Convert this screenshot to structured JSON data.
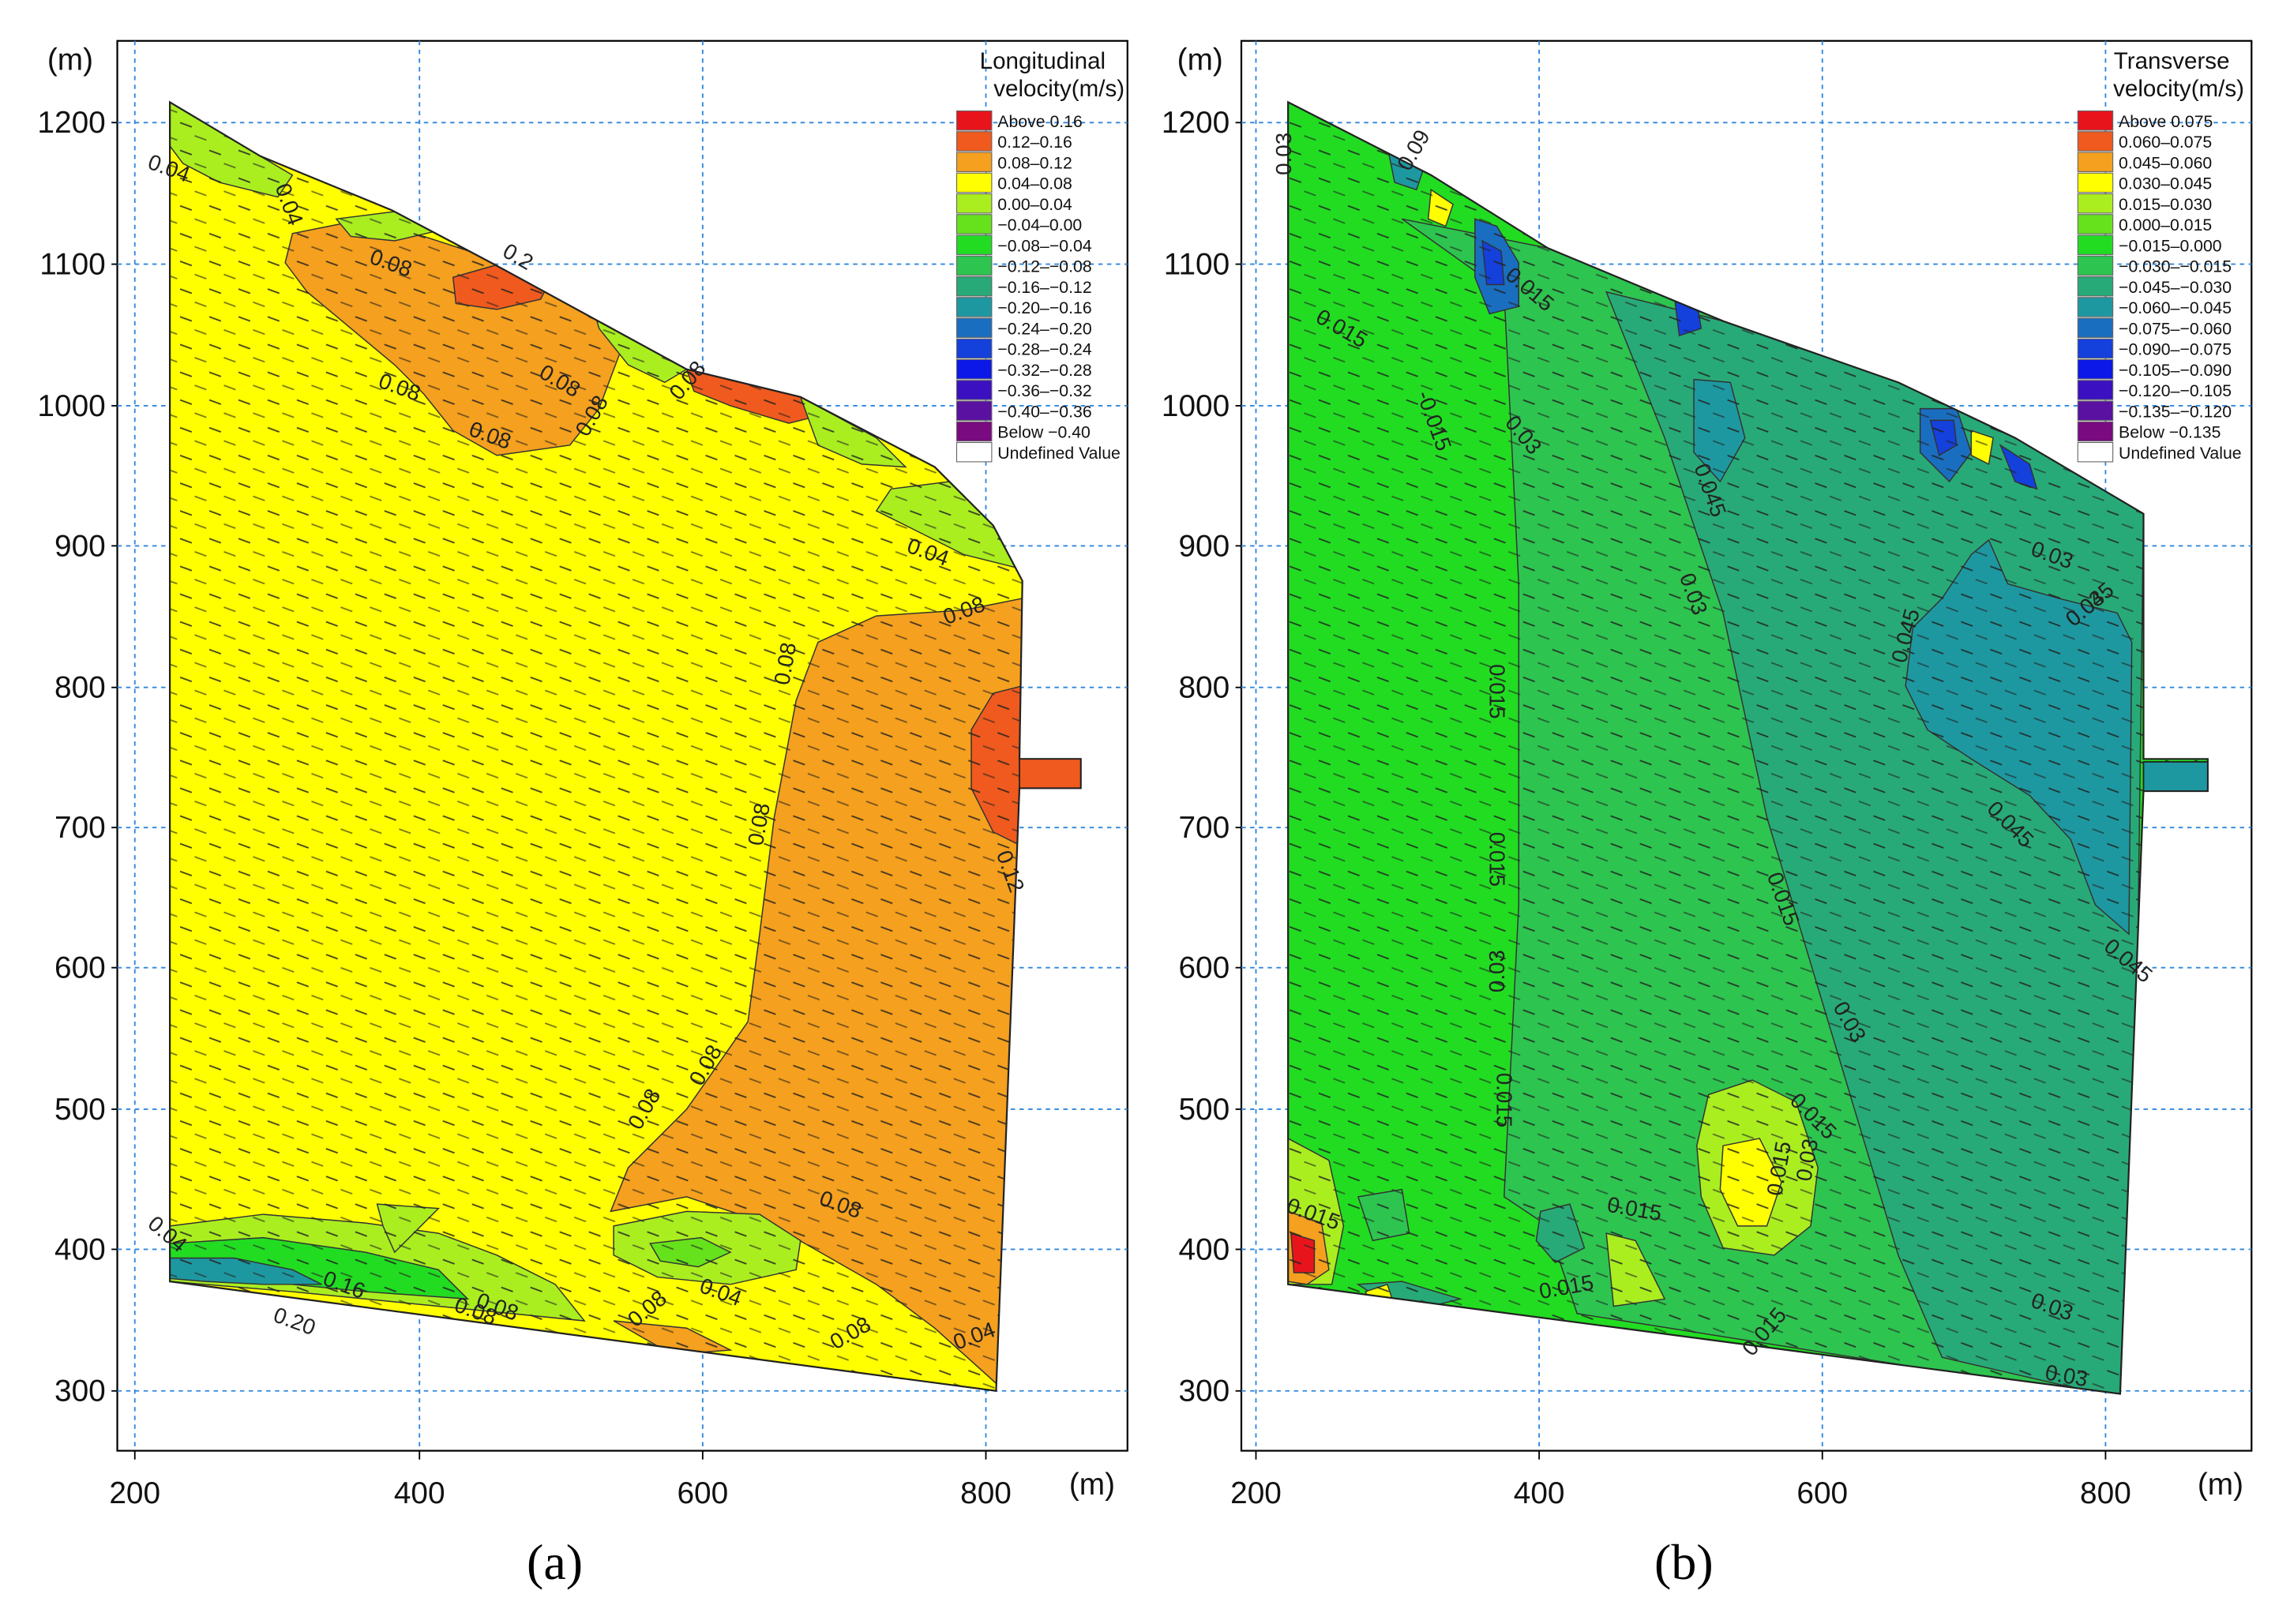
{
  "panels": [
    {
      "id": "a",
      "caption": "(a)",
      "axis_units": {
        "y": "(m)",
        "x": "(m)"
      },
      "x_ticks": [
        "200",
        "400",
        "600",
        "800"
      ],
      "y_ticks": [
        "1200",
        "1100",
        "1000",
        "900",
        "800",
        "700",
        "600",
        "500",
        "400",
        "300"
      ],
      "legend": {
        "title_line1": "Longitudinal",
        "title_line2": "velocity(m/s)",
        "items": [
          {
            "label": "Above 0.16",
            "color": "#e8141c"
          },
          {
            "label": "0.12–0.16",
            "color": "#f05a1e"
          },
          {
            "label": "0.08–0.12",
            "color": "#f5a01e"
          },
          {
            "label": "0.04–0.08",
            "color": "#ffff00"
          },
          {
            "label": "0.00–0.04",
            "color": "#aaee20"
          },
          {
            "label": "−0.04–0.00",
            "color": "#66e21c"
          },
          {
            "label": "−0.08–−0.04",
            "color": "#22dc22"
          },
          {
            "label": "−0.12–−0.08",
            "color": "#2ec450"
          },
          {
            "label": "−0.16–−0.12",
            "color": "#28aa78"
          },
          {
            "label": "−0.20–−0.16",
            "color": "#1e98a0"
          },
          {
            "label": "−0.24–−0.20",
            "color": "#1a6ec0"
          },
          {
            "label": "−0.28–−0.24",
            "color": "#1440dc"
          },
          {
            "label": "−0.32–−0.28",
            "color": "#0c18e8"
          },
          {
            "label": "−0.36–−0.32",
            "color": "#3a10c0"
          },
          {
            "label": "−0.40–−0.36",
            "color": "#5a10a0"
          },
          {
            "label": "Below −0.40",
            "color": "#7a0a80"
          },
          {
            "label": "Undefined Value",
            "color": "#ffffff"
          }
        ]
      },
      "base_color": "#ffff00",
      "contour_labels": [
        "0.04",
        "0.04",
        "0.08",
        "0.08",
        "0.2",
        "0.08",
        "0.08",
        "0.08",
        "0.08",
        "0.04",
        "0.08",
        "0.08",
        "0.08",
        "0.12",
        "0.08",
        "0.08",
        "0.08",
        "0.04",
        "0.20",
        "0.16",
        "0.08",
        "0.04",
        "0.08",
        "0.04",
        "0.08",
        "0.08"
      ]
    },
    {
      "id": "b",
      "caption": "(b)",
      "axis_units": {
        "y": "(m)",
        "x": "(m)"
      },
      "x_ticks": [
        "200",
        "400",
        "600",
        "800"
      ],
      "y_ticks": [
        "1200",
        "1100",
        "1000",
        "900",
        "800",
        "700",
        "600",
        "500",
        "400",
        "300"
      ],
      "legend": {
        "title_line1": "Transverse",
        "title_line2": "velocity(m/s)",
        "items": [
          {
            "label": "Above 0.075",
            "color": "#e8141c"
          },
          {
            "label": "0.060–0.075",
            "color": "#f05a1e"
          },
          {
            "label": "0.045–0.060",
            "color": "#f5a01e"
          },
          {
            "label": "0.030–0.045",
            "color": "#ffff00"
          },
          {
            "label": "0.015–0.030",
            "color": "#aaee20"
          },
          {
            "label": "0.000–0.015",
            "color": "#66e21c"
          },
          {
            "label": "−0.015–0.000",
            "color": "#22dc22"
          },
          {
            "label": "−0.030–−0.015",
            "color": "#2ec450"
          },
          {
            "label": "−0.045–−0.030",
            "color": "#28aa78"
          },
          {
            "label": "−0.060–−0.045",
            "color": "#1e98a0"
          },
          {
            "label": "−0.075–−0.060",
            "color": "#1a6ec0"
          },
          {
            "label": "−0.090–−0.075",
            "color": "#1440dc"
          },
          {
            "label": "−0.105–−0.090",
            "color": "#0c18e8"
          },
          {
            "label": "−0.120–−0.105",
            "color": "#3a10c0"
          },
          {
            "label": "−0.135–−0.120",
            "color": "#5a10a0"
          },
          {
            "label": "Below −0.135",
            "color": "#7a0a80"
          },
          {
            "label": "Undefined Value",
            "color": "#ffffff"
          }
        ]
      },
      "base_color": "#22dc22",
      "contour_labels": [
        "0.03",
        "0.09",
        "0.015",
        "0.015",
        "-0.015",
        "0.03",
        "0.045",
        "0.03",
        "0.045",
        "0.03",
        "0.045",
        "0.015",
        "0.015",
        "0.03",
        "0.045",
        "0.015",
        "0.015",
        "0.015",
        "0.03",
        "0.015",
        "0.03",
        "0.015",
        "0.045",
        "0.015",
        "0.03",
        "0.03",
        "0.015",
        "0.03",
        "0.015"
      ]
    }
  ]
}
